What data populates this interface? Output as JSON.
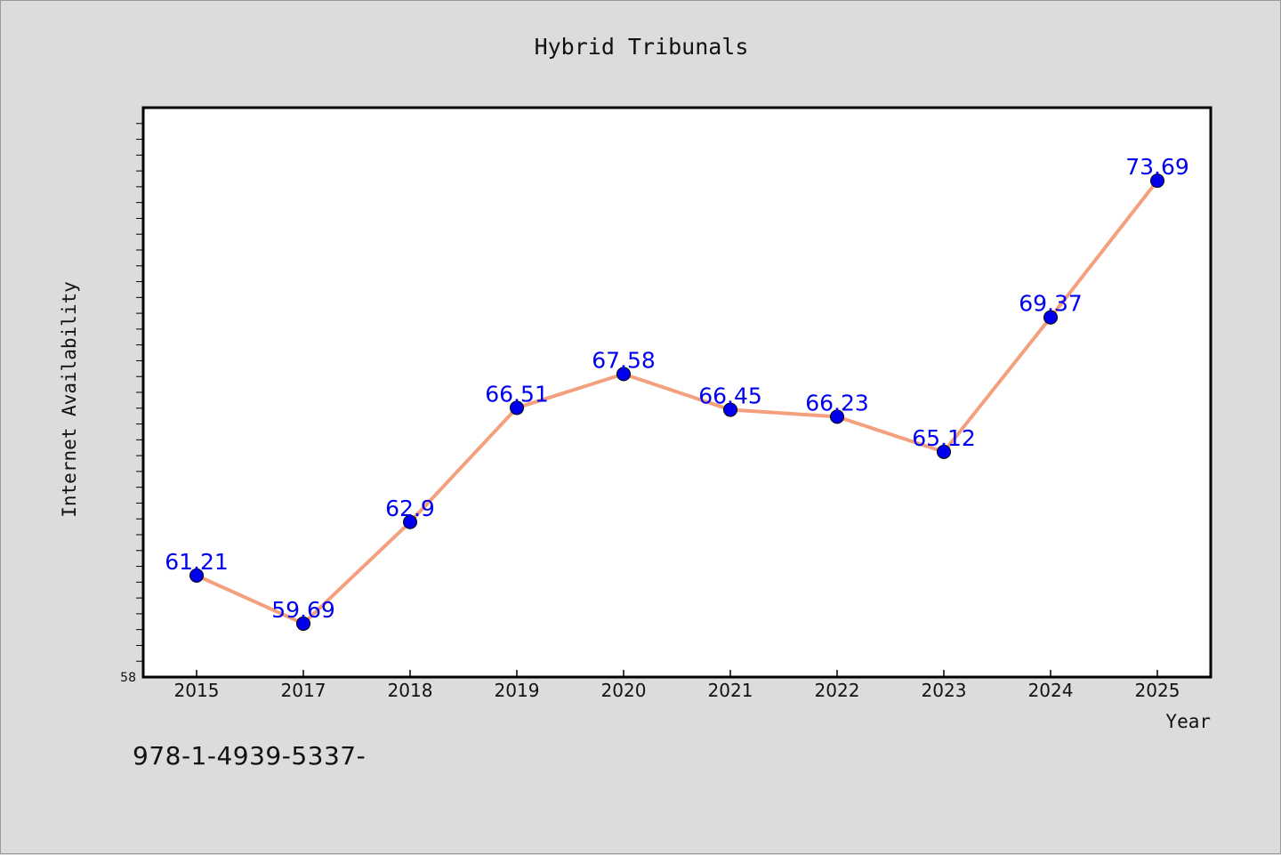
{
  "chart_data": {
    "type": "line",
    "title": "Hybrid Tribunals",
    "xlabel": "Year",
    "ylabel": "Internet Availability",
    "categories": [
      "2015",
      "2017",
      "2018",
      "2019",
      "2020",
      "2021",
      "2022",
      "2023",
      "2024",
      "2025"
    ],
    "series": [
      {
        "values": [
          61.21,
          59.69,
          62.9,
          66.51,
          67.58,
          66.45,
          66.23,
          65.12,
          69.37,
          73.69
        ],
        "data_labels": [
          "61.21",
          "59.69",
          "62.9",
          "66.51",
          "67.58",
          "66.45",
          "66.23",
          "65.12",
          "69.37",
          "73.69"
        ],
        "line_color": "#f4a07e",
        "marker_color": "#0000ee"
      }
    ],
    "ylim": [
      58,
      76
    ],
    "y_tick_labels": [
      "58"
    ],
    "grid": false
  },
  "footnote": "978-1-4939-5337-"
}
